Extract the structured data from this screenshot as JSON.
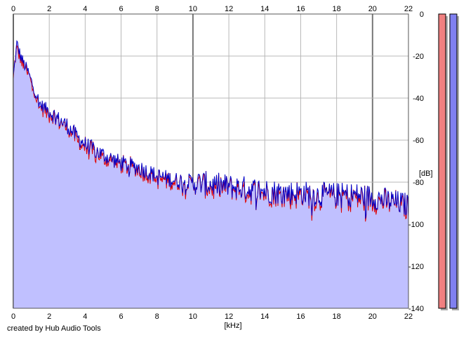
{
  "credit": "created by Hub Audio Tools",
  "chart_data": {
    "type": "line",
    "title": "",
    "xlabel": "[kHz]",
    "ylabel": "[dB]",
    "xlim": [
      0,
      22
    ],
    "ylim": [
      -140,
      0
    ],
    "x_ticks": [
      "0",
      "2",
      "4",
      "6",
      "8",
      "10",
      "12",
      "14",
      "16",
      "18",
      "20",
      "22"
    ],
    "y_ticks": [
      "0",
      "-20",
      "-40",
      "-60",
      "-80",
      "-100",
      "-120",
      "-140"
    ],
    "grid": true,
    "colors": {
      "fill": "#c0c0ff",
      "blue": "#0000c8",
      "red": "#e00000",
      "grid": "#b8b8b8",
      "grid_major": "#777777",
      "meter_red": "#f08080",
      "meter_blue": "#8080f0"
    },
    "series": [
      {
        "color": "#0000c8",
        "x": [
          0,
          0.2,
          0.4,
          0.6,
          0.8,
          1,
          1.5,
          2,
          2.5,
          3,
          3.5,
          4,
          5,
          6,
          7,
          8,
          9,
          10,
          11,
          12,
          13,
          14,
          15,
          16,
          17,
          18,
          19,
          20,
          21,
          22
        ],
        "y": [
          -30,
          -14,
          -20,
          -24,
          -27,
          -32,
          -43,
          -46,
          -50,
          -53,
          -58,
          -62,
          -67,
          -71,
          -73,
          -77,
          -79,
          -80,
          -81,
          -82,
          -83,
          -84,
          -85,
          -85,
          -86,
          -86,
          -86,
          -87,
          -89,
          -91
        ]
      },
      {
        "color": "#e00000",
        "x": [
          0,
          0.2,
          0.4,
          0.6,
          0.8,
          1,
          1.5,
          2,
          2.5,
          3,
          3.5,
          4,
          5,
          6,
          7,
          8,
          9,
          10,
          11,
          12,
          13,
          14,
          15,
          16,
          17,
          18,
          19,
          20,
          21,
          22
        ],
        "y": [
          -31,
          -15,
          -21,
          -25,
          -28,
          -33,
          -44,
          -47,
          -51,
          -54,
          -59,
          -63,
          -68,
          -72,
          -74,
          -78,
          -80,
          -81,
          -82,
          -83,
          -84,
          -85,
          -86,
          -86,
          -87,
          -87,
          -87,
          -88,
          -90,
          -92
        ]
      }
    ],
    "meters": [
      {
        "color": "#f08080",
        "level_db": 0
      },
      {
        "color": "#8080f0",
        "level_db": 0
      }
    ]
  }
}
